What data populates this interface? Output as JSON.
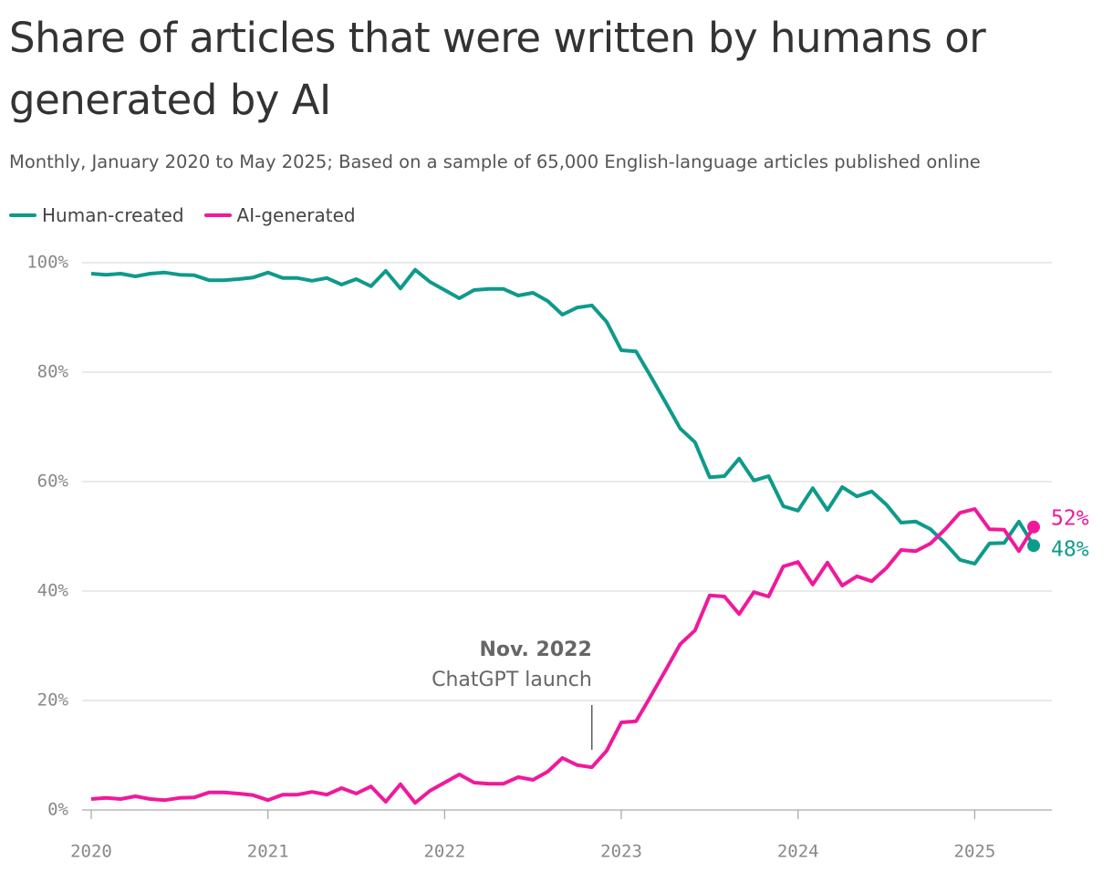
{
  "chart_data": {
    "type": "line",
    "title": "Share of articles that were written by humans or generated by AI",
    "subtitle": "Monthly, January 2020 to May 2025; Based on a sample of 65,000 English-language articles published online",
    "x": [
      "2020-01",
      "2020-02",
      "2020-03",
      "2020-04",
      "2020-05",
      "2020-06",
      "2020-07",
      "2020-08",
      "2020-09",
      "2020-10",
      "2020-11",
      "2020-12",
      "2021-01",
      "2021-02",
      "2021-03",
      "2021-04",
      "2021-05",
      "2021-06",
      "2021-07",
      "2021-08",
      "2021-09",
      "2021-10",
      "2021-11",
      "2021-12",
      "2022-01",
      "2022-02",
      "2022-03",
      "2022-04",
      "2022-05",
      "2022-06",
      "2022-07",
      "2022-08",
      "2022-09",
      "2022-10",
      "2022-11",
      "2022-12",
      "2023-01",
      "2023-02",
      "2023-03",
      "2023-04",
      "2023-05",
      "2023-06",
      "2023-07",
      "2023-08",
      "2023-09",
      "2023-10",
      "2023-11",
      "2023-12",
      "2024-01",
      "2024-02",
      "2024-03",
      "2024-04",
      "2024-05",
      "2024-06",
      "2024-07",
      "2024-08",
      "2024-09",
      "2024-10",
      "2024-11",
      "2024-12",
      "2025-01",
      "2025-02",
      "2025-03",
      "2025-04",
      "2025-05"
    ],
    "series": [
      {
        "name": "Human-created",
        "color": "#0e9a8b",
        "values": [
          98,
          97.8,
          98,
          97.5,
          98,
          98.2,
          97.8,
          97.7,
          96.8,
          96.8,
          97,
          97.3,
          98.2,
          97.2,
          97.2,
          96.7,
          97.2,
          96,
          97,
          95.7,
          98.5,
          95.3,
          98.7,
          96.5,
          95,
          93.5,
          95,
          95.2,
          95.2,
          94,
          94.5,
          93,
          90.5,
          91.8,
          92.2,
          89.2,
          84,
          83.8,
          79.2,
          74.5,
          69.7,
          67.2,
          60.8,
          61,
          64.2,
          60.2,
          61,
          55.5,
          54.7,
          58.8,
          54.8,
          59,
          57.3,
          58.2,
          55.8,
          52.5,
          52.7,
          51.3,
          48.7,
          45.7,
          45,
          48.7,
          48.8,
          52.7,
          48.3
        ],
        "value_labels": [
          null,
          null,
          null,
          null,
          null,
          null,
          null,
          null,
          null,
          null,
          null,
          null,
          null,
          null,
          null,
          null,
          null,
          null,
          null,
          null,
          null,
          null,
          null,
          null,
          null,
          null,
          null,
          null,
          null,
          null,
          null,
          null,
          null,
          null,
          null,
          null,
          null,
          null,
          null,
          null,
          null,
          null,
          null,
          null,
          null,
          null,
          null,
          null,
          null,
          null,
          null,
          null,
          null,
          null,
          null,
          null,
          null,
          null,
          null,
          null,
          null,
          null,
          null,
          null,
          "48%"
        ]
      },
      {
        "name": "AI-generated",
        "color": "#f0199b",
        "values": [
          2,
          2.2,
          2,
          2.5,
          2,
          1.8,
          2.2,
          2.3,
          3.2,
          3.2,
          3,
          2.7,
          1.8,
          2.8,
          2.8,
          3.3,
          2.8,
          4,
          3,
          4.3,
          1.5,
          4.7,
          1.3,
          3.5,
          5,
          6.5,
          5,
          4.8,
          4.8,
          6,
          5.5,
          7,
          9.5,
          8.2,
          7.8,
          10.8,
          16,
          16.2,
          20.8,
          25.5,
          30.3,
          32.8,
          39.2,
          39,
          35.8,
          39.8,
          39,
          44.5,
          45.3,
          41.2,
          45.2,
          41,
          42.7,
          41.8,
          44.2,
          47.5,
          47.3,
          48.7,
          51.3,
          54.3,
          55,
          51.3,
          51.2,
          47.3,
          51.7
        ],
        "value_labels": [
          null,
          null,
          null,
          null,
          null,
          null,
          null,
          null,
          null,
          null,
          null,
          null,
          null,
          null,
          null,
          null,
          null,
          null,
          null,
          null,
          null,
          null,
          null,
          null,
          null,
          null,
          null,
          null,
          null,
          null,
          null,
          null,
          null,
          null,
          null,
          null,
          null,
          null,
          null,
          null,
          null,
          null,
          null,
          null,
          null,
          null,
          null,
          null,
          null,
          null,
          null,
          null,
          null,
          null,
          null,
          null,
          null,
          null,
          null,
          null,
          null,
          null,
          null,
          null,
          "52%"
        ]
      }
    ],
    "xlim": [
      "2020-01",
      "2025-05"
    ],
    "xticks": [
      {
        "value": "2020-01",
        "label": "2020"
      },
      {
        "value": "2021-01",
        "label": "2021"
      },
      {
        "value": "2022-01",
        "label": "2022"
      },
      {
        "value": "2023-01",
        "label": "2023"
      },
      {
        "value": "2024-01",
        "label": "2024"
      },
      {
        "value": "2025-01",
        "label": "2025"
      }
    ],
    "ylim": [
      0,
      100
    ],
    "yticks": [
      {
        "value": 0,
        "label": "0%"
      },
      {
        "value": 20,
        "label": "20%"
      },
      {
        "value": 40,
        "label": "40%"
      },
      {
        "value": 60,
        "label": "60%"
      },
      {
        "value": 80,
        "label": "80%"
      },
      {
        "value": 100,
        "label": "100%"
      }
    ],
    "grid": true,
    "annotation": {
      "x": "2022-11",
      "title": "Nov. 2022",
      "text": "ChatGPT launch"
    }
  }
}
